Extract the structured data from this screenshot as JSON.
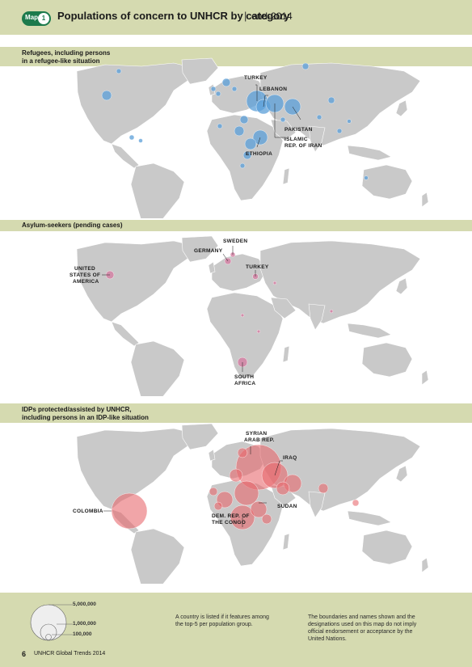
{
  "header": {
    "map_tag": "Map",
    "map_number": "1",
    "title": "Populations of concern to UNHCR by category",
    "separator": "|",
    "subtitle": "end-2014"
  },
  "panels": [
    {
      "label_line1": "Refugees, including persons",
      "label_line2": "in a refugee-like situation",
      "bubble_color": "#5b9fd8",
      "labels": [
        "TURKEY",
        "LEBANON",
        "PAKISTAN",
        "ISLAMIC",
        "REP. OF IRAN",
        "ETHIOPIA"
      ]
    },
    {
      "label_line1": "Asylum-seekers (pending cases)",
      "label_line2": "",
      "bubble_color": "#d47ea3",
      "labels": [
        "SWEDEN",
        "GERMANY",
        "UNITED",
        "STATES OF",
        "AMERICA",
        "TURKEY",
        "SOUTH",
        "AFRICA"
      ]
    },
    {
      "label_line1": "IDPs protected/assisted by UNHCR,",
      "label_line2": "including persons in an IDP-like situation",
      "bubble_color": "#e8696e",
      "labels": [
        "SYRIAN",
        "ARAB REP.",
        "IRAQ",
        "COLOMBIA",
        "SUDAN",
        "DEM. REP. OF",
        "THE CONGO"
      ]
    }
  ],
  "legend": {
    "values": [
      "5,000,000",
      "1,000,000",
      "100,000"
    ]
  },
  "notes": {
    "note1_line1": "A country is listed if it features among",
    "note1_line2": "the top-5 per population group.",
    "note2_line1": "The boundaries and names shown and the",
    "note2_line2": "designations used on this map do not imply",
    "note2_line3": "official endorsement or acceptance by the",
    "note2_line4": "United Nations."
  },
  "page": {
    "number": "6",
    "source": "UNHCR Global Trends 2014"
  },
  "colors": {
    "band": "#d5dab0",
    "land": "#c9c9c9",
    "accent_green": "#1c7a4c"
  }
}
